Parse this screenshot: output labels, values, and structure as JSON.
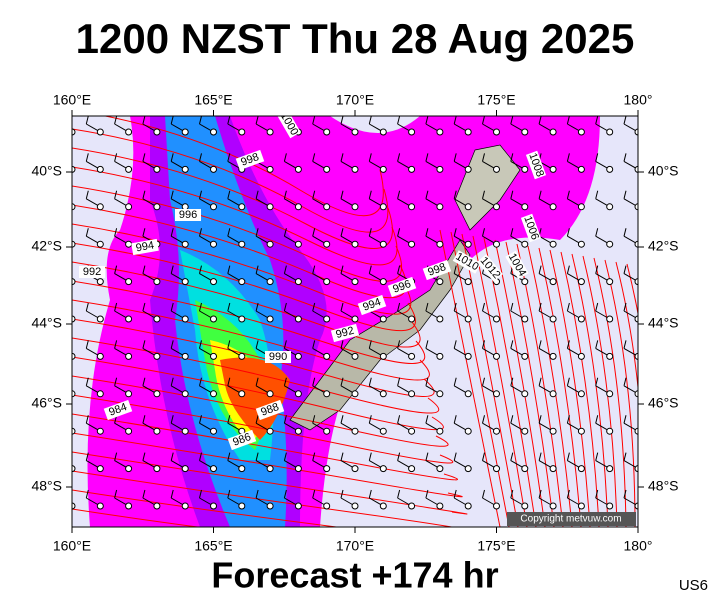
{
  "title": "1200 NZST Thu 28 Aug 2025",
  "footer": "Forecast +174 hr",
  "corner_label": "US6",
  "copyright": "Copyright metvuw.com",
  "lon_labels": [
    "160°E",
    "165°E",
    "170°E",
    "175°E",
    "180°"
  ],
  "lat_labels": [
    "40°S",
    "42°S",
    "44°S",
    "46°S",
    "48°S"
  ],
  "isobar_labels": [
    "1000",
    "998",
    "996",
    "994",
    "992",
    "984",
    "988",
    "986",
    "990",
    "992",
    "994",
    "996",
    "998",
    "1010",
    "1012",
    "1008",
    "1006",
    "1004"
  ]
}
